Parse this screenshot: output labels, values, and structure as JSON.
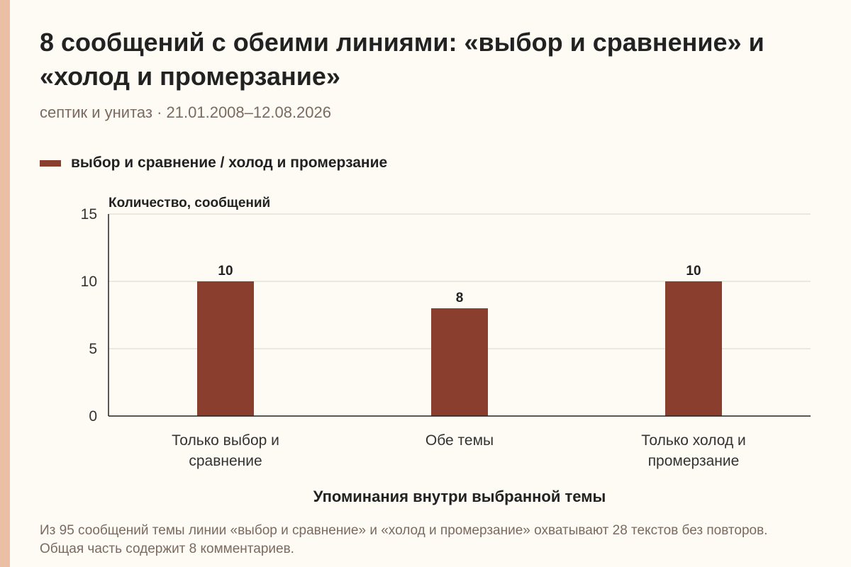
{
  "header": {
    "title": "8 сообщений с обеими линиями: «выбор и сравнение» и «холод и промерзание»",
    "subtitle": "септик и унитаз · 21.01.2008–12.08.2026"
  },
  "legend": {
    "label": "выбор и сравнение / холод и промерзание",
    "color": "#8a3f2e"
  },
  "footnote": "Из 95 сообщений темы линии «выбор и сравнение» и «холод и промерзание» охватывают 28 текстов без повторов. Общая часть содержит 8 комментариев.",
  "colors": {
    "background": "#fdfbf4",
    "accent_strip": "#ebbfa5",
    "bar": "#8a3f2e",
    "gridline": "#d9d4cc",
    "axis": "#222222"
  },
  "chart_data": {
    "type": "bar",
    "title": "8 сообщений с обеими линиями: «выбор и сравнение» и «холод и промерзание»",
    "subtitle": "септик и унитаз · 21.01.2008–12.08.2026",
    "categories": [
      [
        "Только выбор и",
        "сравнение"
      ],
      [
        "Обе темы"
      ],
      [
        "Только холод и",
        "промерзание"
      ]
    ],
    "series": [
      {
        "name": "выбор и сравнение / холод и промерзание",
        "values": [
          10,
          8,
          10
        ]
      }
    ],
    "data_labels": [
      "10",
      "8",
      "10"
    ],
    "ylabel": "Количество, сообщений",
    "xlabel": "Упоминания внутри выбранной темы",
    "ylim": [
      0,
      15
    ],
    "yticks": [
      0,
      5,
      10,
      15
    ],
    "grid": true,
    "legend_position": "top-left"
  }
}
